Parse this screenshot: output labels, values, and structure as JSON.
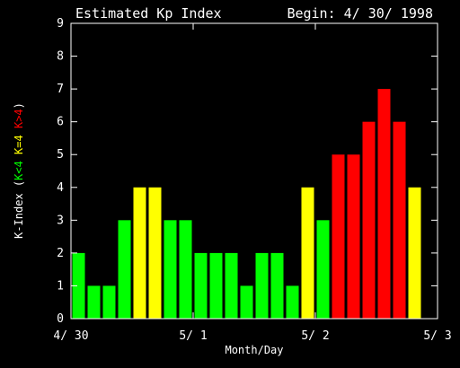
{
  "chart_data": {
    "type": "bar",
    "title": "Estimated Kp Index",
    "subtitle": "Begin: 4/ 30/ 1998",
    "xlabel": "Month/Day",
    "ylabel": {
      "prefix": "K-Index (",
      "green": "K<4",
      "yellow": "K=4",
      "red": "K>4",
      "suffix": ")"
    },
    "ylim": [
      0,
      9
    ],
    "xlim": [
      0,
      24
    ],
    "y_ticks": [
      "0",
      "1",
      "2",
      "3",
      "4",
      "5",
      "6",
      "7",
      "8",
      "9"
    ],
    "x_ticks": [
      {
        "label": "4/ 30",
        "at": 0
      },
      {
        "label": "5/ 1",
        "at": 8
      },
      {
        "label": "5/ 2",
        "at": 16
      },
      {
        "label": "5/ 3",
        "at": 24
      }
    ],
    "values": [
      2,
      1,
      1,
      3,
      4,
      4,
      3,
      3,
      2,
      2,
      2,
      1,
      2,
      2,
      1,
      4,
      3,
      5,
      5,
      6,
      7,
      6,
      4
    ],
    "colors": {
      "below4": "#00ff00",
      "equal4": "#ffff00",
      "above4": "#ff0000",
      "axis": "#ffffff",
      "background": "#000000"
    }
  }
}
